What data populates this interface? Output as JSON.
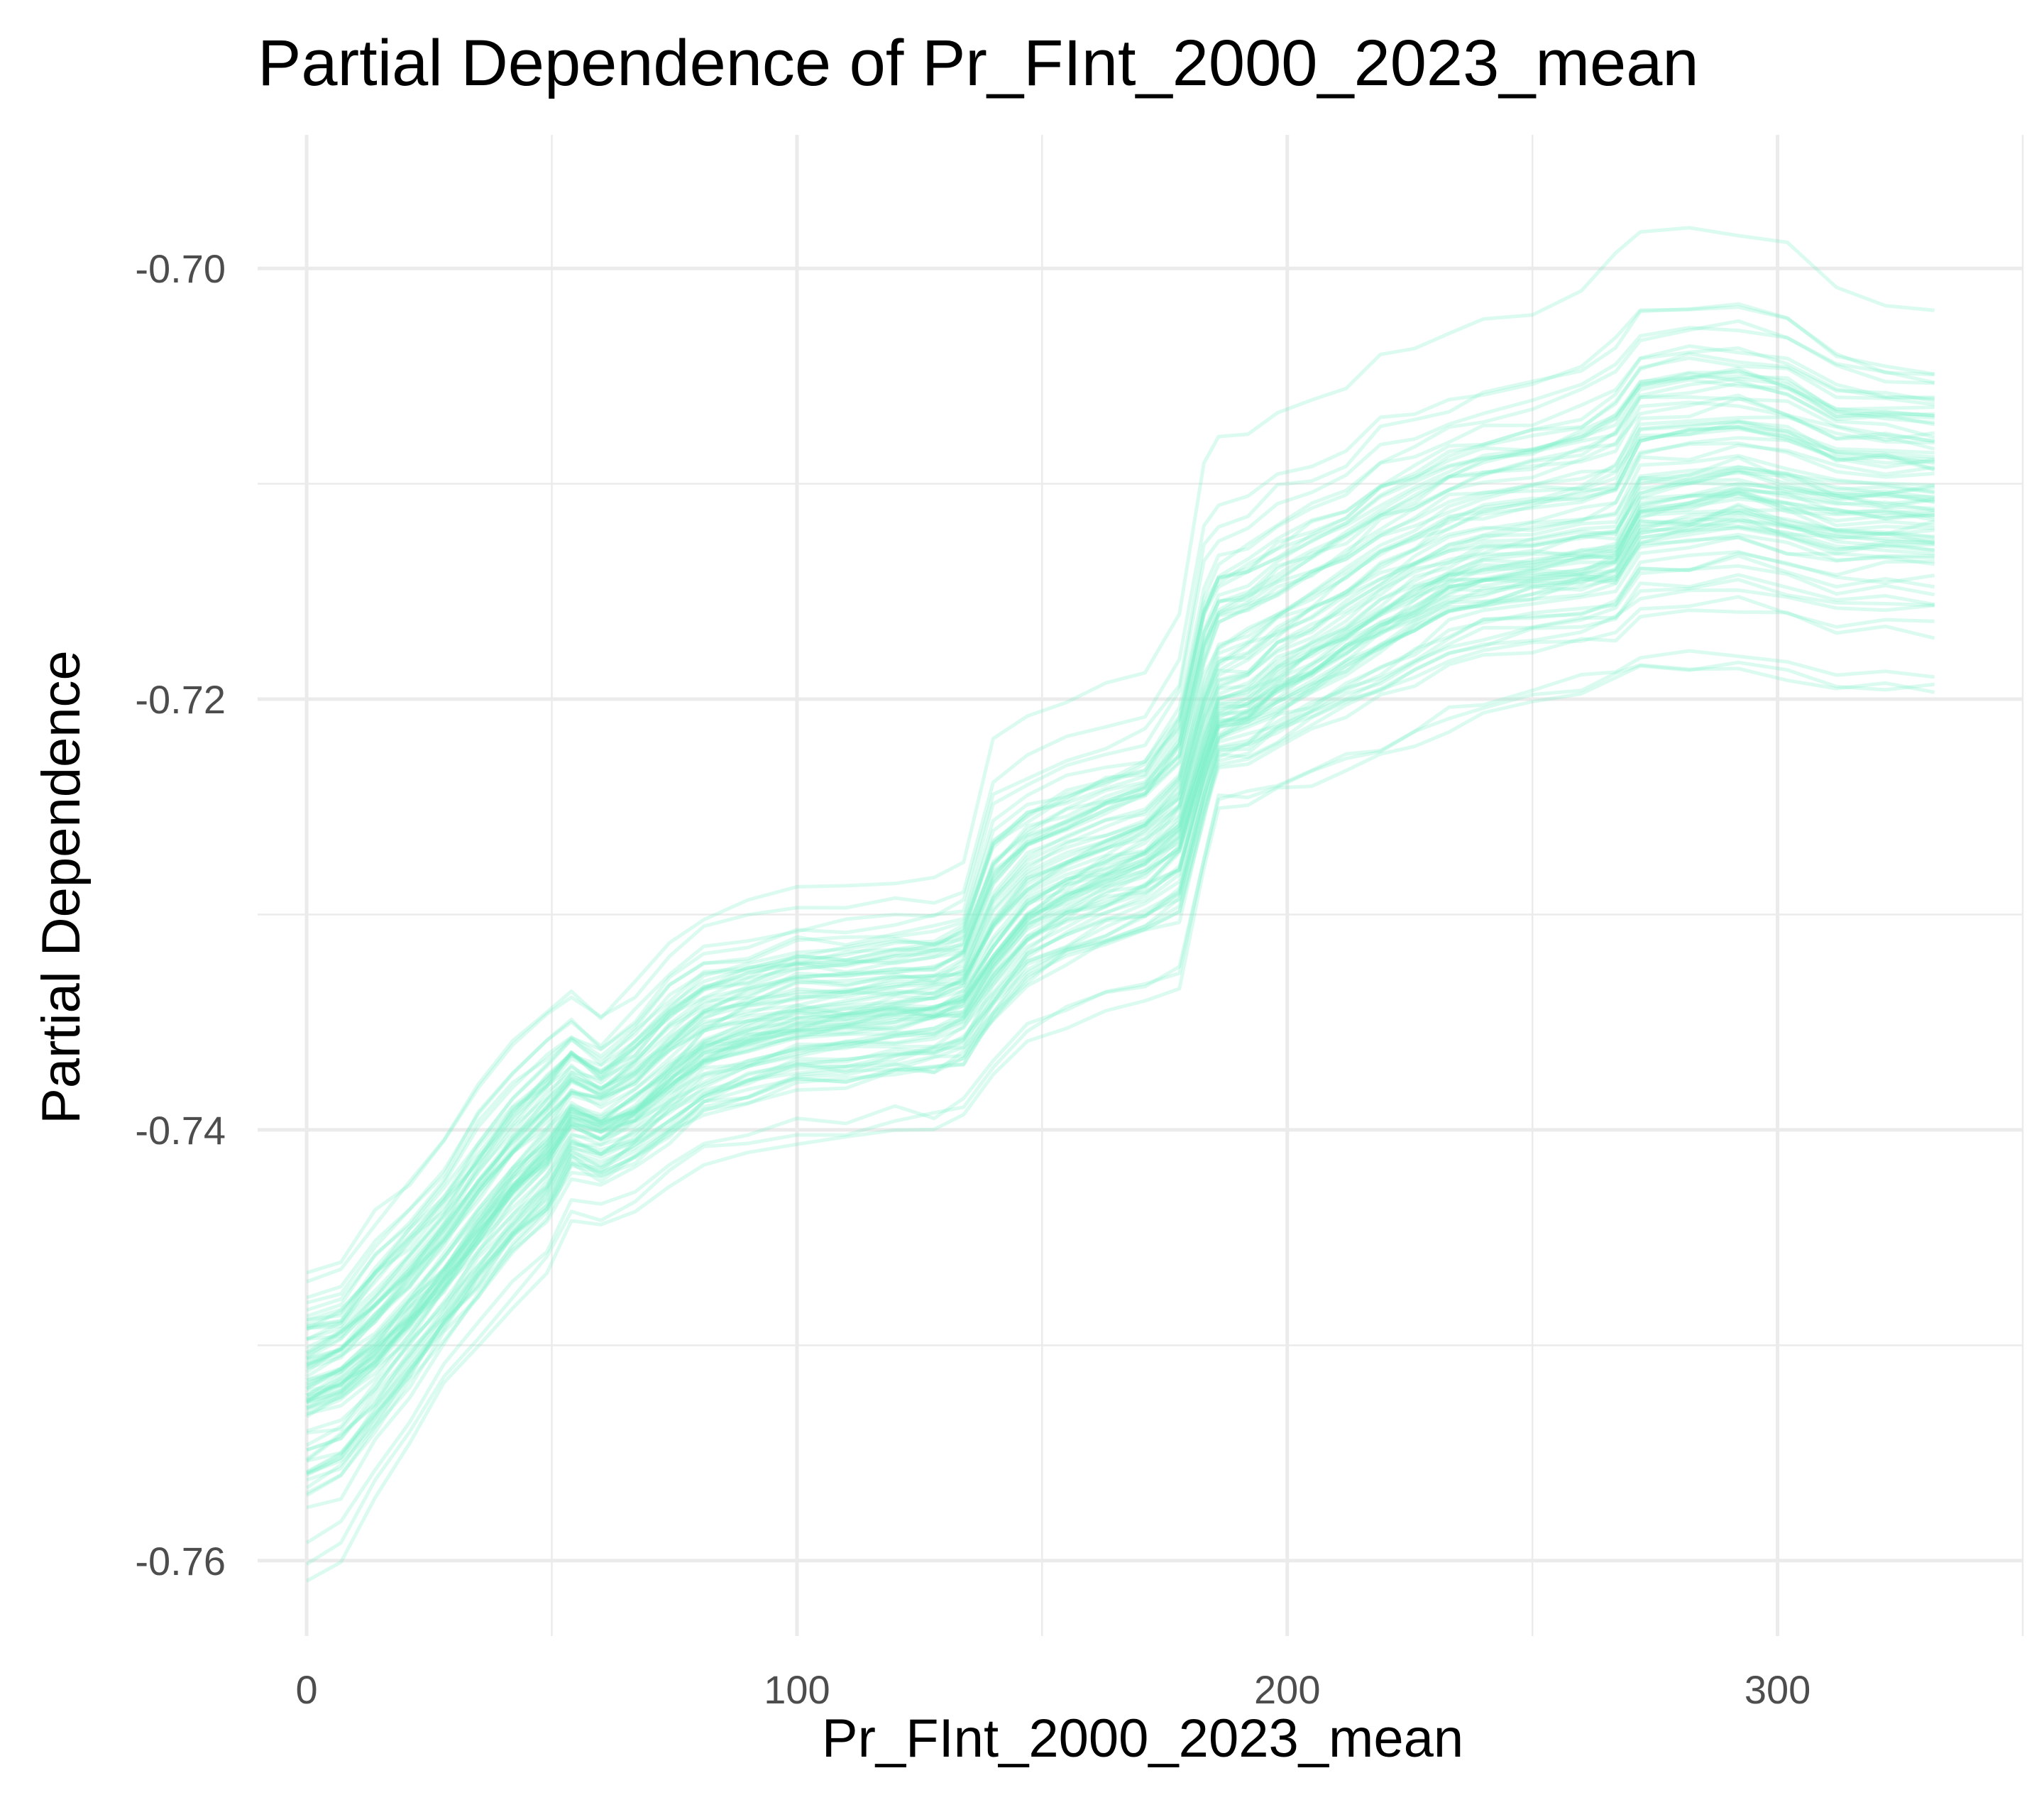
{
  "chart_data": {
    "type": "line",
    "title": "Partial Dependence of Pr_FInt_2000_2023_mean",
    "xlabel": "Pr_FInt_2000_2023_mean",
    "ylabel": "Partial Dependence",
    "xlim": [
      -10,
      350
    ],
    "ylim": [
      -0.7635,
      -0.6938
    ],
    "x_ticks": [
      0,
      100,
      200,
      300
    ],
    "x_tick_labels": [
      "0",
      "100",
      "200",
      "300"
    ],
    "y_ticks": [
      -0.76,
      -0.74,
      -0.72,
      -0.7
    ],
    "y_tick_labels": [
      "-0.76",
      "-0.74",
      "-0.72",
      "-0.70"
    ],
    "grid": true,
    "legend": "none",
    "line_color": "#7ef2c8",
    "n_series": 80,
    "x": [
      0,
      7,
      14,
      21,
      28,
      35,
      42,
      49,
      54,
      60,
      67,
      74,
      81,
      90,
      100,
      110,
      120,
      128,
      134,
      140,
      147,
      155,
      163,
      171,
      178,
      183,
      186,
      192,
      198,
      205,
      212,
      219,
      226,
      233,
      240,
      250,
      260,
      267,
      272,
      282,
      292,
      302,
      312,
      322,
      332
    ],
    "series_center": [
      -0.7525,
      -0.7518,
      -0.7505,
      -0.7488,
      -0.747,
      -0.7448,
      -0.7428,
      -0.7412,
      -0.7395,
      -0.74,
      -0.7392,
      -0.7378,
      -0.7365,
      -0.7358,
      -0.7352,
      -0.735,
      -0.7347,
      -0.7345,
      -0.734,
      -0.732,
      -0.73,
      -0.729,
      -0.7282,
      -0.7275,
      -0.7262,
      -0.7225,
      -0.7205,
      -0.72,
      -0.719,
      -0.718,
      -0.717,
      -0.716,
      -0.715,
      -0.7142,
      -0.7138,
      -0.7135,
      -0.7132,
      -0.713,
      -0.7108,
      -0.7105,
      -0.71,
      -0.7105,
      -0.711,
      -0.711,
      -0.711
    ],
    "series_upper": [
      -0.746,
      -0.7455,
      -0.743,
      -0.7415,
      -0.7395,
      -0.737,
      -0.735,
      -0.7335,
      -0.733,
      -0.734,
      -0.7325,
      -0.7305,
      -0.7295,
      -0.729,
      -0.7285,
      -0.7285,
      -0.728,
      -0.728,
      -0.7275,
      -0.7215,
      -0.7205,
      -0.72,
      -0.7195,
      -0.719,
      -0.716,
      -0.709,
      -0.708,
      -0.7075,
      -0.7065,
      -0.706,
      -0.7055,
      -0.704,
      -0.704,
      -0.703,
      -0.7025,
      -0.702,
      -0.701,
      -0.6995,
      -0.6985,
      -0.698,
      -0.6985,
      -0.699,
      -0.701,
      -0.7015,
      -0.702
    ],
    "series_lower": [
      -0.7608,
      -0.76,
      -0.757,
      -0.7545,
      -0.752,
      -0.75,
      -0.748,
      -0.7465,
      -0.744,
      -0.7445,
      -0.7435,
      -0.7425,
      -0.7415,
      -0.741,
      -0.7405,
      -0.7405,
      -0.74,
      -0.74,
      -0.7395,
      -0.7375,
      -0.736,
      -0.735,
      -0.7345,
      -0.734,
      -0.7335,
      -0.728,
      -0.725,
      -0.725,
      -0.7245,
      -0.724,
      -0.7235,
      -0.723,
      -0.7225,
      -0.7215,
      -0.721,
      -0.7205,
      -0.72,
      -0.7195,
      -0.719,
      -0.719,
      -0.719,
      -0.7195,
      -0.72,
      -0.72,
      -0.72
    ]
  }
}
